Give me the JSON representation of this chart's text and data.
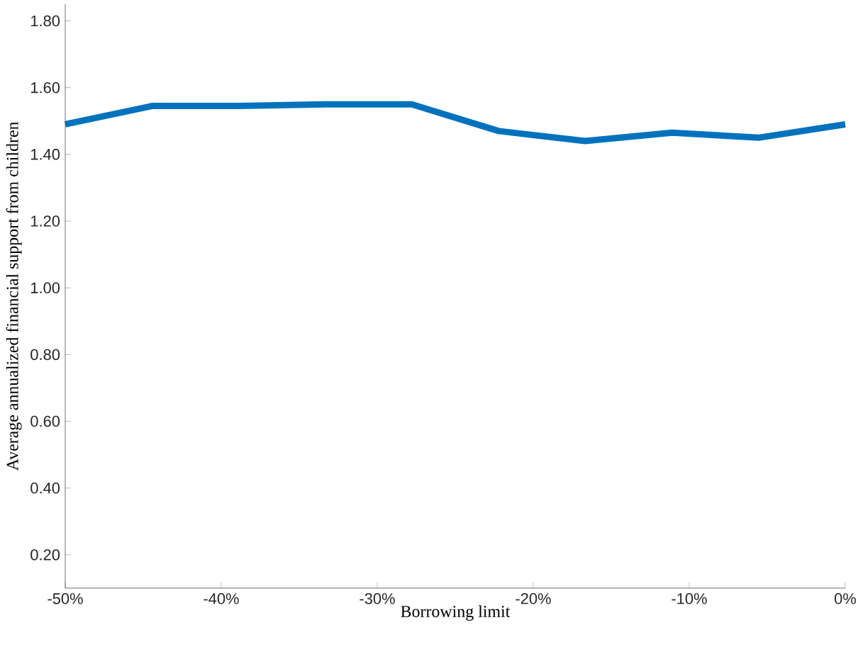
{
  "chart_data": {
    "type": "line",
    "xlabel": "Borrowing limit",
    "ylabel": "Average annualized financial support from children",
    "x": [
      -50,
      -44.44,
      -38.89,
      -33.33,
      -27.78,
      -22.22,
      -16.67,
      -11.11,
      -5.56,
      0
    ],
    "series": [
      {
        "color": "#0072bd",
        "values": [
          1.49,
          1.545,
          1.545,
          1.55,
          1.55,
          1.47,
          1.44,
          1.465,
          1.45,
          1.49
        ]
      }
    ],
    "xlim": [
      -50,
      0
    ],
    "ylim": [
      0.1,
      1.85
    ],
    "xticks": [
      {
        "value": -50,
        "label": "-50%"
      },
      {
        "value": -40,
        "label": "-40%"
      },
      {
        "value": -30,
        "label": "-30%"
      },
      {
        "value": -20,
        "label": "-20%"
      },
      {
        "value": -10,
        "label": "-10%"
      },
      {
        "value": 0,
        "label": "0%"
      }
    ],
    "yticks": [
      {
        "value": 0.2,
        "label": "0.20"
      },
      {
        "value": 0.4,
        "label": "0.40"
      },
      {
        "value": 0.6,
        "label": "0.60"
      },
      {
        "value": 0.8,
        "label": "0.80"
      },
      {
        "value": 1.0,
        "label": "1.00"
      },
      {
        "value": 1.2,
        "label": "1.20"
      },
      {
        "value": 1.4,
        "label": "1.40"
      },
      {
        "value": 1.6,
        "label": "1.60"
      },
      {
        "value": 1.8,
        "label": "1.80"
      }
    ],
    "marker": "none",
    "line_style": "solid"
  }
}
